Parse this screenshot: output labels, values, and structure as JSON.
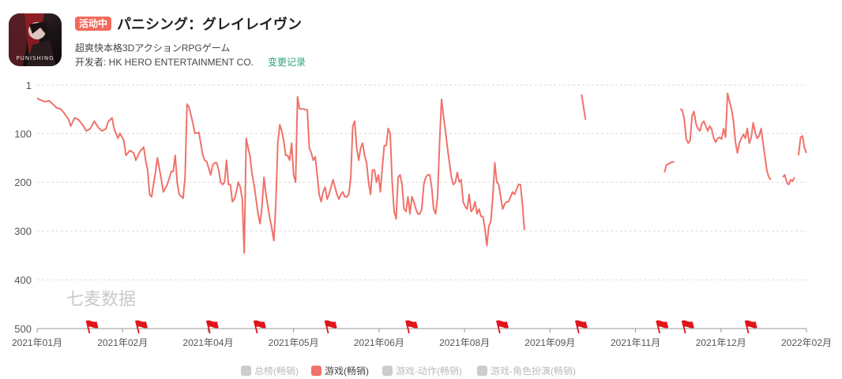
{
  "app": {
    "badge": "活动中",
    "title": "パニシング：グレイレイヴン",
    "subtitle": "超爽快本格3DアクションRPGゲーム",
    "developer": "开发者: HK HERO ENTERTAINMENT CO.",
    "change_log": "变更记录",
    "icon_text": "PUNISHING"
  },
  "watermark": "七麦数据",
  "colors": {
    "accent": "#f26a5c",
    "line": "#f0726a",
    "flag": "#e0151b",
    "grid": "#d9d9d9",
    "link": "#2aa57a",
    "inactive": "#cccccc"
  },
  "legend": [
    {
      "label": "总榜(畅销)",
      "color": "#cccccc",
      "active": false
    },
    {
      "label": "游戏(畅销)",
      "color": "#f0726a",
      "active": true
    },
    {
      "label": "游戏-动作(畅销)",
      "color": "#cccccc",
      "active": false
    },
    {
      "label": "游戏-角色扮演(畅销)",
      "color": "#cccccc",
      "active": false
    }
  ],
  "chart_data": {
    "type": "line",
    "y_axis": {
      "ticks": [
        1,
        100,
        200,
        300,
        400,
        500
      ],
      "inverted": true,
      "range": [
        1,
        500
      ]
    },
    "x_axis": {
      "tick_labels": [
        "2021年01月",
        "2021年02月",
        "2021年04月",
        "2021年05月",
        "2021年06月",
        "2021年08月",
        "2021年09月",
        "2021年11月",
        "2021年12月",
        "2022年02月"
      ],
      "range_days": [
        0,
        390
      ]
    },
    "grid": true,
    "flags_day": [
      25,
      50,
      86,
      110,
      146,
      187,
      233,
      273,
      314,
      327,
      359
    ],
    "series": [
      {
        "name": "游戏(畅销)",
        "segments": [
          [
            [
              0,
              28
            ],
            [
              2,
              32
            ],
            [
              4,
              35
            ],
            [
              6,
              33
            ],
            [
              8,
              40
            ],
            [
              10,
              48
            ],
            [
              12,
              50
            ],
            [
              14,
              60
            ],
            [
              16,
              72
            ],
            [
              17,
              85
            ],
            [
              19,
              68
            ],
            [
              21,
              72
            ],
            [
              23,
              82
            ],
            [
              25,
              95
            ],
            [
              27,
              90
            ],
            [
              29,
              75
            ],
            [
              31,
              88
            ],
            [
              33,
              95
            ],
            [
              35,
              90
            ],
            [
              36,
              76
            ],
            [
              38,
              68
            ],
            [
              39,
              90
            ],
            [
              41,
              110
            ],
            [
              42,
              100
            ],
            [
              44,
              115
            ],
            [
              45,
              145
            ],
            [
              47,
              135
            ],
            [
              49,
              140
            ],
            [
              50,
              155
            ],
            [
              52,
              138
            ],
            [
              54,
              128
            ],
            [
              55,
              155
            ],
            [
              56,
              175
            ],
            [
              57,
              225
            ],
            [
              58,
              230
            ],
            [
              60,
              180
            ],
            [
              61,
              150
            ],
            [
              63,
              195
            ],
            [
              64,
              220
            ],
            [
              66,
              205
            ],
            [
              68,
              178
            ],
            [
              69,
              178
            ],
            [
              70,
              145
            ],
            [
              71,
              200
            ],
            [
              72,
              225
            ],
            [
              74,
              233
            ],
            [
              75,
              190
            ],
            [
              76,
              40
            ],
            [
              77,
              46
            ],
            [
              79,
              80
            ],
            [
              80,
              100
            ],
            [
              82,
              98
            ],
            [
              84,
              145
            ],
            [
              85,
              155
            ],
            [
              86,
              158
            ],
            [
              87,
              172
            ],
            [
              88,
              185
            ],
            [
              89,
              165
            ],
            [
              90,
              160
            ],
            [
              91,
              160
            ],
            [
              92,
              175
            ],
            [
              93,
              200
            ],
            [
              94,
              205
            ],
            [
              95,
              200
            ],
            [
              96,
              155
            ],
            [
              97,
              205
            ],
            [
              98,
              205
            ],
            [
              99,
              240
            ],
            [
              100,
              235
            ],
            [
              101,
              220
            ],
            [
              102,
              200
            ],
            [
              103,
              210
            ],
            [
              104,
              235
            ],
            [
              105,
              345
            ],
            [
              106,
              110
            ],
            [
              107,
              130
            ],
            [
              108,
              148
            ],
            [
              109,
              185
            ],
            [
              110,
              205
            ],
            [
              112,
              265
            ],
            [
              113,
              285
            ],
            [
              114,
              250
            ],
            [
              115,
              190
            ],
            [
              116,
              225
            ],
            [
              117,
              250
            ],
            [
              118,
              275
            ],
            [
              119,
              295
            ],
            [
              120,
              320
            ],
            [
              121,
              245
            ],
            [
              122,
              120
            ],
            [
              123,
              82
            ],
            [
              124,
              95
            ],
            [
              125,
              115
            ],
            [
              126,
              145
            ],
            [
              127,
              145
            ],
            [
              128,
              155
            ],
            [
              129,
              120
            ],
            [
              130,
              185
            ],
            [
              131,
              200
            ],
            [
              132,
              25
            ],
            [
              133,
              50
            ],
            [
              135,
              50
            ],
            [
              137,
              52
            ],
            [
              138,
              130
            ],
            [
              139,
              140
            ],
            [
              140,
              155
            ],
            [
              141,
              148
            ],
            [
              142,
              185
            ],
            [
              143,
              225
            ],
            [
              144,
              240
            ],
            [
              145,
              220
            ],
            [
              146,
              210
            ],
            [
              147,
              235
            ],
            [
              148,
              225
            ],
            [
              149,
              210
            ],
            [
              150,
              195
            ],
            [
              151,
              210
            ],
            [
              152,
              225
            ],
            [
              153,
              235
            ],
            [
              154,
              225
            ],
            [
              155,
              220
            ],
            [
              156,
              230
            ],
            [
              157,
              230
            ],
            [
              158,
              225
            ],
            [
              159,
              190
            ],
            [
              160,
              85
            ],
            [
              161,
              75
            ],
            [
              162,
              130
            ],
            [
              163,
              155
            ],
            [
              164,
              130
            ],
            [
              165,
              120
            ],
            [
              166,
              145
            ],
            [
              167,
              160
            ],
            [
              168,
              200
            ],
            [
              169,
              225
            ],
            [
              170,
              175
            ],
            [
              171,
              175
            ],
            [
              172,
              200
            ],
            [
              173,
              185
            ],
            [
              174,
              220
            ],
            [
              175,
              168
            ],
            [
              176,
              125
            ],
            [
              177,
              125
            ],
            [
              178,
              90
            ],
            [
              179,
              100
            ],
            [
              180,
              200
            ],
            [
              181,
              260
            ],
            [
              182,
              275
            ],
            [
              183,
              190
            ],
            [
              184,
              185
            ],
            [
              185,
              205
            ],
            [
              186,
              255
            ],
            [
              187,
              260
            ],
            [
              188,
              230
            ],
            [
              189,
              265
            ],
            [
              190,
              230
            ],
            [
              191,
              240
            ],
            [
              192,
              255
            ],
            [
              193,
              265
            ],
            [
              194,
              265
            ],
            [
              195,
              255
            ],
            [
              196,
              205
            ],
            [
              197,
              190
            ],
            [
              198,
              185
            ],
            [
              199,
              185
            ],
            [
              200,
              210
            ],
            [
              201,
              255
            ],
            [
              202,
              265
            ],
            [
              203,
              230
            ],
            [
              204,
              120
            ],
            [
              205,
              30
            ],
            [
              206,
              65
            ],
            [
              207,
              95
            ],
            [
              208,
              130
            ],
            [
              209,
              160
            ],
            [
              210,
              190
            ],
            [
              211,
              205
            ],
            [
              212,
              200
            ],
            [
              213,
              180
            ],
            [
              214,
              200
            ],
            [
              215,
              195
            ],
            [
              216,
              240
            ],
            [
              217,
              250
            ],
            [
              218,
              255
            ],
            [
              219,
              225
            ],
            [
              220,
              260
            ],
            [
              221,
              255
            ],
            [
              222,
              240
            ],
            [
              223,
              265
            ],
            [
              224,
              255
            ],
            [
              225,
              270
            ],
            [
              226,
              270
            ],
            [
              227,
              295
            ],
            [
              228,
              330
            ],
            [
              229,
              290
            ],
            [
              230,
              280
            ],
            [
              231,
              230
            ],
            [
              232,
              160
            ],
            [
              233,
              200
            ],
            [
              234,
              205
            ],
            [
              235,
              230
            ],
            [
              236,
              255
            ],
            [
              237,
              245
            ],
            [
              238,
              240
            ],
            [
              239,
              240
            ],
            [
              240,
              230
            ],
            [
              241,
              220
            ],
            [
              242,
              225
            ],
            [
              243,
              215
            ],
            [
              244,
              205
            ],
            [
              245,
              205
            ],
            [
              246,
              245
            ],
            [
              247,
              298
            ]
          ],
          [
            [
              276,
              20
            ],
            [
              278,
              72
            ]
          ],
          [
            [
              318,
              180
            ],
            [
              319,
              165
            ],
            [
              321,
              160
            ],
            [
              323,
              158
            ]
          ],
          [
            [
              326,
              50
            ],
            [
              327,
              52
            ],
            [
              328,
              70
            ],
            [
              329,
              110
            ],
            [
              330,
              120
            ],
            [
              331,
              115
            ],
            [
              332,
              65
            ],
            [
              333,
              55
            ],
            [
              334,
              80
            ],
            [
              335,
              90
            ],
            [
              336,
              95
            ],
            [
              337,
              80
            ],
            [
              338,
              75
            ],
            [
              339,
              85
            ],
            [
              340,
              95
            ],
            [
              341,
              85
            ],
            [
              342,
              92
            ],
            [
              343,
              110
            ],
            [
              344,
              118
            ],
            [
              345,
              110
            ],
            [
              346,
              108
            ],
            [
              347,
              112
            ],
            [
              348,
              90
            ],
            [
              349,
              108
            ],
            [
              350,
              18
            ],
            [
              351,
              35
            ],
            [
              352,
              50
            ],
            [
              353,
              75
            ],
            [
              354,
              118
            ],
            [
              355,
              140
            ],
            [
              356,
              120
            ],
            [
              357,
              110
            ],
            [
              358,
              102
            ],
            [
              359,
              110
            ],
            [
              360,
              90
            ],
            [
              361,
              120
            ],
            [
              362,
              108
            ],
            [
              363,
              78
            ],
            [
              364,
              98
            ],
            [
              365,
              110
            ],
            [
              366,
              105
            ],
            [
              367,
              90
            ],
            [
              368,
              120
            ],
            [
              369,
              150
            ],
            [
              370,
              178
            ],
            [
              371,
              190
            ],
            [
              372,
              195
            ]
          ],
          [
            [
              378,
              190
            ],
            [
              379,
              185
            ],
            [
              380,
              200
            ],
            [
              381,
              205
            ],
            [
              382,
              195
            ],
            [
              383,
              198
            ],
            [
              384,
              190
            ]
          ],
          [
            [
              386,
              145
            ],
            [
              387,
              108
            ],
            [
              388,
              105
            ],
            [
              389,
              130
            ],
            [
              390,
              140
            ]
          ]
        ]
      }
    ]
  }
}
